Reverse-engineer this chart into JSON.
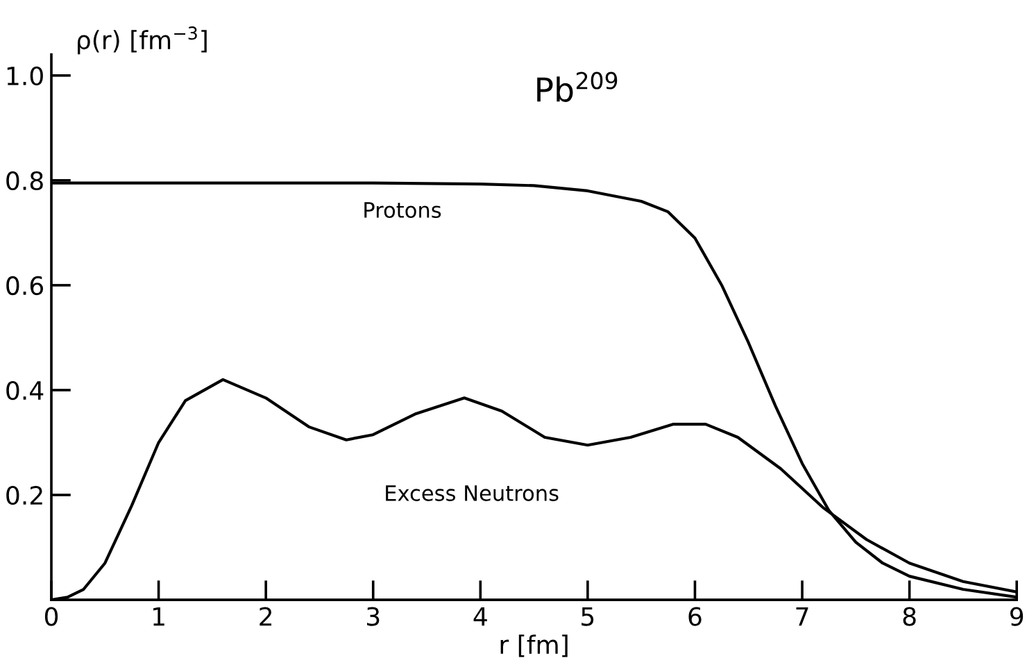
{
  "chart_data": {
    "type": "line",
    "title": "Pb$^{209}$",
    "xlabel": "r [fm]",
    "ylabel": "ρ(r) [fm$^{−3}$]",
    "xlim": [
      0,
      9
    ],
    "ylim": [
      0,
      1.04
    ],
    "xticks": [
      0,
      1,
      2,
      3,
      4,
      5,
      6,
      7,
      8,
      9
    ],
    "yticks": [
      0.2,
      0.4,
      0.6,
      0.8,
      {
        "value": 1.0,
        "label": "1.0"
      }
    ],
    "grid": false,
    "legend": false,
    "marker": "none",
    "line_style": "solid",
    "series": [
      {
        "name": "Protons",
        "color": "#000000",
        "x": [
          0,
          1,
          2,
          3,
          4,
          4.5,
          5,
          5.5,
          5.75,
          6,
          6.25,
          6.5,
          6.75,
          7,
          7.25,
          7.5,
          7.75,
          8,
          8.5,
          9
        ],
        "values": [
          0.795,
          0.795,
          0.795,
          0.795,
          0.793,
          0.79,
          0.78,
          0.76,
          0.74,
          0.69,
          0.6,
          0.49,
          0.37,
          0.26,
          0.17,
          0.11,
          0.07,
          0.045,
          0.02,
          0.005
        ]
      },
      {
        "name": "Excess Neutrons",
        "color": "#000000",
        "x": [
          0,
          0.15,
          0.3,
          0.5,
          0.75,
          1,
          1.25,
          1.6,
          2,
          2.4,
          2.75,
          3,
          3.4,
          3.85,
          4.2,
          4.6,
          5,
          5.4,
          5.8,
          6.1,
          6.4,
          6.8,
          7.2,
          7.6,
          8,
          8.5,
          9
        ],
        "values": [
          0,
          0.005,
          0.02,
          0.07,
          0.18,
          0.3,
          0.38,
          0.42,
          0.385,
          0.33,
          0.305,
          0.315,
          0.355,
          0.385,
          0.36,
          0.31,
          0.295,
          0.31,
          0.335,
          0.335,
          0.31,
          0.25,
          0.175,
          0.115,
          0.07,
          0.035,
          0.015
        ]
      }
    ]
  }
}
